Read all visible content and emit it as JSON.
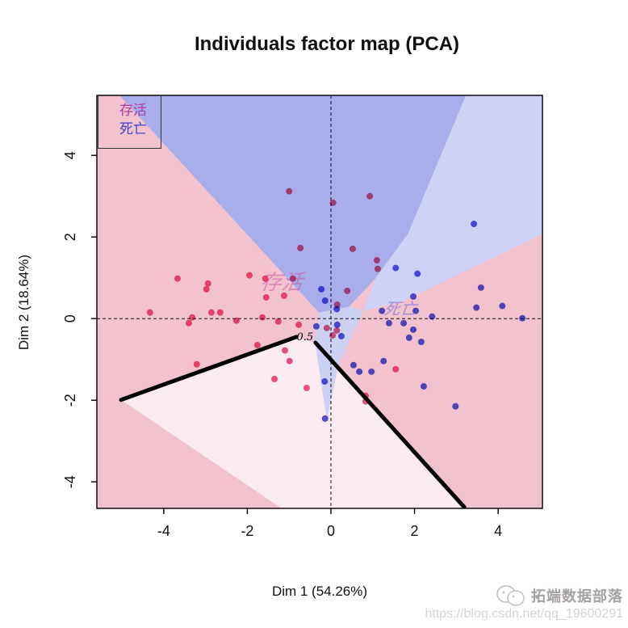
{
  "title": "Individuals factor map (PCA)",
  "axes": {
    "xlabel": "Dim 1 (54.26%)",
    "ylabel": "Dim 2 (18.64%)",
    "x_ticks": [
      -4,
      -2,
      0,
      2,
      4
    ],
    "y_ticks": [
      -4,
      -2,
      0,
      2,
      4
    ],
    "xlim": [
      -5.6,
      5.06
    ],
    "ylim": [
      -4.65,
      5.47
    ]
  },
  "legend": {
    "items": [
      {
        "label": "存活",
        "color": "#b0389d"
      },
      {
        "label": "死亡",
        "color": "#4141cc"
      }
    ]
  },
  "chart_data": {
    "type": "scatter",
    "title": "Individuals factor map (PCA)",
    "xlabel": "Dim 1 (54.26%)",
    "ylabel": "Dim 2 (18.64%)",
    "xlim": [
      -5.6,
      5.06
    ],
    "ylim": [
      -4.65,
      5.47
    ],
    "grid": false,
    "zero_lines_dashed": true,
    "regions": [
      {
        "name": "pink-base",
        "color": "#f2c3cf",
        "pts": [
          [
            -5.6,
            5.47
          ],
          [
            5.06,
            5.47
          ],
          [
            5.06,
            -4.65
          ],
          [
            -5.6,
            -4.65
          ]
        ]
      },
      {
        "name": "pale-pink-lower",
        "color": "#f9ebf0",
        "pts": [
          [
            -5.02,
            -1.99
          ],
          [
            -0.83,
            -0.45
          ],
          [
            -0.37,
            -0.59
          ],
          [
            3.19,
            -4.62
          ],
          [
            3.3,
            -4.65
          ],
          [
            -1.18,
            -4.65
          ]
        ]
      },
      {
        "name": "medium-blue-top",
        "color": "#a9aeea",
        "pts": [
          [
            -5.06,
            5.47
          ],
          [
            3.23,
            5.47
          ],
          [
            1.84,
            2.07
          ],
          [
            1.06,
            0.98
          ],
          [
            0.43,
            0.29
          ],
          [
            -0.29,
            0.15
          ]
        ]
      },
      {
        "name": "light-blue-right",
        "color": "#cdd2f6",
        "pts": [
          [
            3.23,
            5.47
          ],
          [
            5.06,
            5.47
          ],
          [
            5.06,
            2.07
          ],
          [
            1.74,
            0.44
          ],
          [
            0.77,
            0.19
          ],
          [
            1.06,
            0.98
          ],
          [
            1.84,
            2.07
          ]
        ]
      },
      {
        "name": "pale-blue-wedge",
        "color": "#ccd1f3",
        "pts": [
          [
            -0.29,
            0.15
          ],
          [
            0.43,
            0.29
          ],
          [
            0.77,
            0.19
          ],
          [
            0.19,
            -1.1
          ],
          [
            -0.1,
            -2.49
          ],
          [
            -0.39,
            -0.51
          ]
        ]
      }
    ],
    "boundary": {
      "label": "0.5",
      "label_pos": [
        -0.62,
        -0.53
      ],
      "segments": [
        [
          [
            -5.02,
            -1.99
          ],
          [
            -0.83,
            -0.45
          ]
        ],
        [
          [
            -0.37,
            -0.59
          ],
          [
            3.19,
            -4.62
          ]
        ]
      ]
    },
    "class_marks": [
      {
        "text": "存活",
        "x": -1.2,
        "y": 0.72,
        "size": 26,
        "color": "#c75ca8",
        "opacity": 0.55
      },
      {
        "text": "死亡",
        "x": 1.64,
        "y": 0.1,
        "size": 20,
        "color": "#5a5ad8",
        "opacity": 0.5
      }
    ],
    "groups": [
      {
        "name": "存活",
        "color": "#ec5681",
        "points": [
          {
            "id": "19",
            "x": -1.0,
            "y": 3.12
          },
          {
            "id": "66",
            "x": 0.05,
            "y": 2.84
          },
          {
            "id": "29",
            "x": 0.93,
            "y": 3.0
          },
          {
            "id": "69",
            "x": -0.73,
            "y": 1.73
          },
          {
            "id": "31",
            "x": 0.52,
            "y": 1.71
          },
          {
            "id": "64",
            "x": 1.1,
            "y": 1.43
          },
          {
            "id": "34",
            "x": 1.12,
            "y": 1.22
          },
          {
            "id": "15",
            "x": -1.95,
            "y": 1.06
          },
          {
            "id": "11",
            "x": -1.57,
            "y": 0.98
          },
          {
            "id": "10",
            "x": -0.91,
            "y": 0.98
          },
          {
            "id": "12",
            "x": -1.55,
            "y": 0.52
          },
          {
            "id": "51",
            "x": -1.12,
            "y": 0.56
          },
          {
            "id": "65",
            "x": -3.67,
            "y": 0.98
          },
          {
            "id": "21",
            "x": -2.94,
            "y": 0.86
          },
          {
            "id": "46",
            "x": -2.98,
            "y": 0.72
          },
          {
            "id": "52",
            "x": -4.33,
            "y": 0.15
          },
          {
            "id": "13",
            "x": -3.32,
            "y": 0.03
          },
          {
            "id": "58",
            "x": -2.86,
            "y": 0.15
          },
          {
            "id": "81",
            "x": -2.65,
            "y": 0.15
          },
          {
            "id": "14",
            "x": -3.4,
            "y": -0.11
          },
          {
            "id": "59",
            "x": -3.21,
            "y": -1.12
          },
          {
            "id": "60",
            "x": -2.26,
            "y": -0.05
          },
          {
            "id": "16",
            "x": -1.64,
            "y": 0.03
          },
          {
            "id": "40",
            "x": -1.76,
            "y": -0.65
          },
          {
            "id": "4",
            "x": -1.1,
            "y": -0.78
          },
          {
            "id": "38",
            "x": -1.26,
            "y": -0.07
          },
          {
            "id": "44",
            "x": -0.77,
            "y": -0.15
          },
          {
            "id": "18",
            "x": -0.99,
            "y": -1.04
          },
          {
            "id": "49",
            "x": -0.58,
            "y": -1.7
          },
          {
            "id": "6",
            "x": -0.1,
            "y": -0.23
          },
          {
            "id": "30",
            "x": 0.14,
            "y": -0.29
          },
          {
            "id": "1",
            "x": 0.04,
            "y": -0.41
          },
          {
            "id": "7",
            "x": 0.39,
            "y": 0.68
          },
          {
            "id": "36",
            "x": 0.15,
            "y": 0.34
          },
          {
            "id": "57",
            "x": 1.55,
            "y": -1.24
          },
          {
            "id": "8",
            "x": 0.83,
            "y": -1.89
          },
          {
            "id": "",
            "x": -1.35,
            "y": -1.48
          },
          {
            "id": "",
            "x": 0.83,
            "y": -2.03
          }
        ]
      },
      {
        "name": "死亡",
        "color": "#5755e0",
        "points": [
          {
            "id": "54",
            "x": 3.42,
            "y": 2.32
          },
          {
            "id": "3",
            "x": 2.07,
            "y": 1.1
          },
          {
            "id": "22",
            "x": 1.55,
            "y": 1.24
          },
          {
            "id": "67",
            "x": 3.59,
            "y": 0.76
          },
          {
            "id": "47",
            "x": 3.48,
            "y": 0.27
          },
          {
            "id": "35",
            "x": 4.1,
            "y": 0.31
          },
          {
            "id": "32",
            "x": 4.58,
            "y": 0.01
          },
          {
            "id": "56",
            "x": -0.23,
            "y": 0.72
          },
          {
            "id": "28",
            "x": -0.14,
            "y": 0.44
          },
          {
            "id": "23",
            "x": -0.15,
            "y": -1.54
          },
          {
            "id": "27",
            "x": 0.54,
            "y": -1.14
          },
          {
            "id": "33",
            "x": -0.14,
            "y": -2.45
          },
          {
            "id": "50",
            "x": 0.25,
            "y": -0.43
          },
          {
            "id": "70",
            "x": -0.35,
            "y": -0.19
          },
          {
            "id": "42",
            "x": 2.22,
            "y": -1.66
          },
          {
            "id": "63",
            "x": 2.98,
            "y": -2.15
          },
          {
            "id": "61",
            "x": 1.97,
            "y": 0.54
          },
          {
            "id": "24",
            "x": 2.42,
            "y": 0.05
          },
          {
            "id": "68",
            "x": 2.03,
            "y": 0.19
          },
          {
            "id": "26",
            "x": 1.22,
            "y": 0.19
          },
          {
            "id": "2",
            "x": 1.39,
            "y": -0.11
          },
          {
            "id": "41",
            "x": 2.16,
            "y": -0.57
          },
          {
            "id": "39",
            "x": 1.87,
            "y": -0.47
          },
          {
            "id": "49",
            "x": 1.74,
            "y": -0.11
          },
          {
            "id": "5",
            "x": 1.26,
            "y": -1.04
          },
          {
            "id": "",
            "x": 1.97,
            "y": -0.27
          },
          {
            "id": "",
            "x": 0.68,
            "y": -1.3
          },
          {
            "id": "",
            "x": 0.97,
            "y": -1.3
          },
          {
            "id": "",
            "x": 0.15,
            "y": -0.15
          },
          {
            "id": "",
            "x": 0.14,
            "y": 0.23
          }
        ]
      }
    ]
  },
  "watermark": {
    "brand": "拓端数据部落",
    "url": "https://blog.csdn.net/qq_19600291"
  }
}
